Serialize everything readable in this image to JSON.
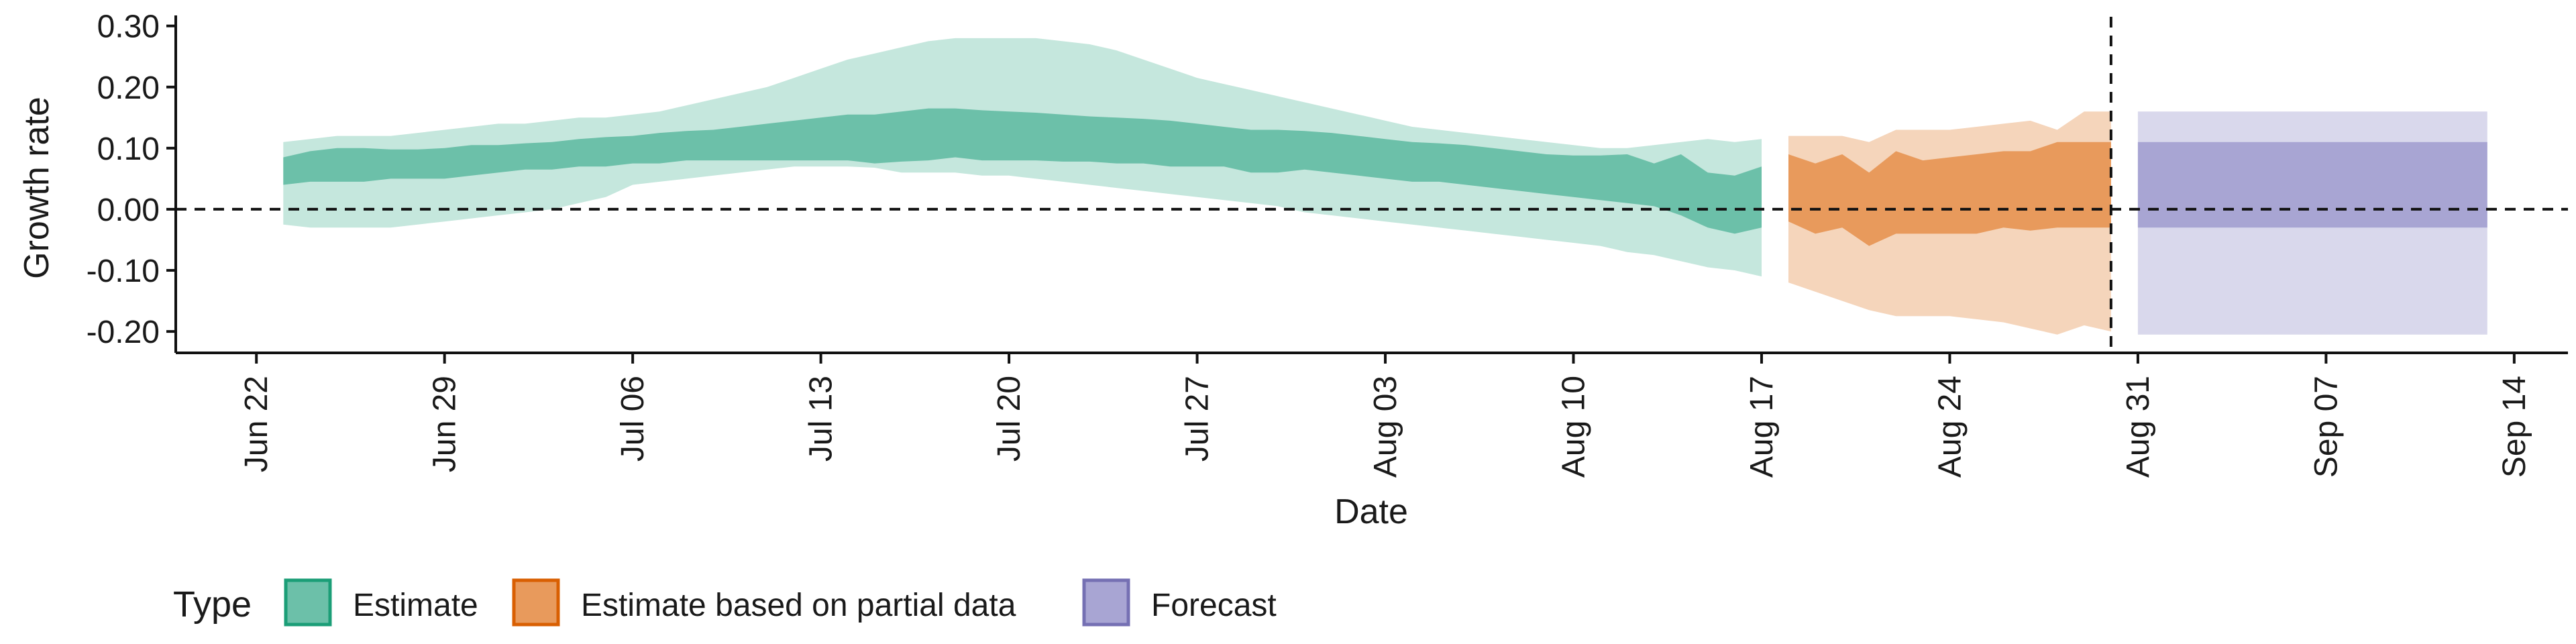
{
  "chart_data": {
    "type": "area",
    "title": "",
    "xlabel": "Date",
    "ylabel": "Growth rate",
    "ylim": [
      -0.235,
      0.315
    ],
    "yticks": [
      -0.2,
      -0.1,
      0.0,
      0.1,
      0.2,
      0.3
    ],
    "ytick_labels": [
      "-0.20",
      "-0.10",
      "0.00",
      "0.10",
      "0.20",
      "0.30"
    ],
    "xlim": [
      "2020-06-19",
      "2020-09-16"
    ],
    "xticks": [
      "2020-06-22",
      "2020-06-29",
      "2020-07-06",
      "2020-07-13",
      "2020-07-20",
      "2020-07-27",
      "2020-08-03",
      "2020-08-10",
      "2020-08-17",
      "2020-08-24",
      "2020-08-31",
      "2020-09-07",
      "2020-09-14"
    ],
    "xtick_labels": [
      "Jun 22",
      "Jun 29",
      "Jul 06",
      "Jul 13",
      "Jul 20",
      "Jul 27",
      "Aug 03",
      "Aug 10",
      "Aug 17",
      "Aug 24",
      "Aug 31",
      "Sep 07",
      "Sep 14"
    ],
    "reference_lines": {
      "horizontal_y": 0.0,
      "vertical_date": "2020-08-30"
    },
    "grid": false,
    "legend": {
      "title": "Type",
      "position": "bottom",
      "entries": [
        "Estimate",
        "Estimate based on partial data",
        "Forecast"
      ]
    },
    "series": [
      {
        "name": "Estimate",
        "fill": "#6cc0a9",
        "outer_fill": "#c5e7dd",
        "edge": "#1b9e77",
        "x": [
          "2020-06-23",
          "2020-06-24",
          "2020-06-25",
          "2020-06-26",
          "2020-06-27",
          "2020-06-28",
          "2020-06-29",
          "2020-06-30",
          "2020-07-01",
          "2020-07-02",
          "2020-07-03",
          "2020-07-04",
          "2020-07-05",
          "2020-07-06",
          "2020-07-07",
          "2020-07-08",
          "2020-07-09",
          "2020-07-10",
          "2020-07-11",
          "2020-07-12",
          "2020-07-13",
          "2020-07-14",
          "2020-07-15",
          "2020-07-16",
          "2020-07-17",
          "2020-07-18",
          "2020-07-19",
          "2020-07-20",
          "2020-07-21",
          "2020-07-22",
          "2020-07-23",
          "2020-07-24",
          "2020-07-25",
          "2020-07-26",
          "2020-07-27",
          "2020-07-28",
          "2020-07-29",
          "2020-07-30",
          "2020-07-31",
          "2020-08-01",
          "2020-08-02",
          "2020-08-03",
          "2020-08-04",
          "2020-08-05",
          "2020-08-06",
          "2020-08-07",
          "2020-08-08",
          "2020-08-09",
          "2020-08-10",
          "2020-08-11",
          "2020-08-12",
          "2020-08-13",
          "2020-08-14",
          "2020-08-15",
          "2020-08-16",
          "2020-08-17"
        ],
        "lower_90": [
          -0.025,
          -0.03,
          -0.03,
          -0.03,
          -0.03,
          -0.025,
          -0.02,
          -0.015,
          -0.01,
          -0.005,
          0.0,
          0.01,
          0.02,
          0.04,
          0.045,
          0.05,
          0.055,
          0.06,
          0.065,
          0.07,
          0.07,
          0.07,
          0.068,
          0.06,
          0.06,
          0.06,
          0.055,
          0.055,
          0.05,
          0.045,
          0.04,
          0.035,
          0.03,
          0.025,
          0.02,
          0.015,
          0.01,
          0.005,
          -0.005,
          -0.01,
          -0.015,
          -0.02,
          -0.025,
          -0.03,
          -0.035,
          -0.04,
          -0.045,
          -0.05,
          -0.055,
          -0.06,
          -0.07,
          -0.075,
          -0.085,
          -0.095,
          -0.1,
          -0.11
        ],
        "lower_50": [
          0.04,
          0.045,
          0.045,
          0.045,
          0.05,
          0.05,
          0.05,
          0.055,
          0.06,
          0.065,
          0.065,
          0.07,
          0.07,
          0.075,
          0.075,
          0.08,
          0.08,
          0.08,
          0.08,
          0.08,
          0.08,
          0.08,
          0.075,
          0.078,
          0.08,
          0.085,
          0.08,
          0.08,
          0.08,
          0.078,
          0.078,
          0.075,
          0.075,
          0.07,
          0.07,
          0.07,
          0.06,
          0.06,
          0.065,
          0.06,
          0.055,
          0.05,
          0.045,
          0.045,
          0.04,
          0.035,
          0.03,
          0.025,
          0.02,
          0.015,
          0.01,
          0.005,
          -0.01,
          -0.03,
          -0.04,
          -0.03
        ],
        "upper_50": [
          0.085,
          0.095,
          0.1,
          0.1,
          0.098,
          0.098,
          0.1,
          0.105,
          0.105,
          0.108,
          0.11,
          0.115,
          0.118,
          0.12,
          0.125,
          0.128,
          0.13,
          0.135,
          0.14,
          0.145,
          0.15,
          0.155,
          0.155,
          0.16,
          0.165,
          0.165,
          0.162,
          0.16,
          0.158,
          0.155,
          0.152,
          0.15,
          0.148,
          0.145,
          0.14,
          0.135,
          0.13,
          0.13,
          0.128,
          0.125,
          0.12,
          0.115,
          0.11,
          0.108,
          0.105,
          0.1,
          0.095,
          0.09,
          0.088,
          0.088,
          0.09,
          0.075,
          0.09,
          0.06,
          0.055,
          0.07
        ],
        "upper_90": [
          0.11,
          0.115,
          0.12,
          0.12,
          0.12,
          0.125,
          0.13,
          0.135,
          0.14,
          0.14,
          0.145,
          0.15,
          0.15,
          0.155,
          0.16,
          0.17,
          0.18,
          0.19,
          0.2,
          0.215,
          0.23,
          0.245,
          0.255,
          0.265,
          0.275,
          0.28,
          0.28,
          0.28,
          0.28,
          0.275,
          0.27,
          0.26,
          0.245,
          0.23,
          0.215,
          0.205,
          0.195,
          0.185,
          0.175,
          0.165,
          0.155,
          0.145,
          0.135,
          0.13,
          0.125,
          0.12,
          0.115,
          0.11,
          0.105,
          0.1,
          0.1,
          0.105,
          0.11,
          0.115,
          0.11,
          0.115
        ]
      },
      {
        "name": "Estimate based on partial data",
        "fill": "#e89a5c",
        "outer_fill": "#f5d5bb",
        "edge": "#d95f02",
        "x": [
          "2020-08-18",
          "2020-08-19",
          "2020-08-20",
          "2020-08-21",
          "2020-08-22",
          "2020-08-23",
          "2020-08-24",
          "2020-08-25",
          "2020-08-26",
          "2020-08-27",
          "2020-08-28",
          "2020-08-29",
          "2020-08-30"
        ],
        "lower_90": [
          -0.12,
          -0.135,
          -0.15,
          -0.165,
          -0.175,
          -0.175,
          -0.175,
          -0.18,
          -0.185,
          -0.195,
          -0.205,
          -0.19,
          -0.2
        ],
        "lower_50": [
          -0.02,
          -0.04,
          -0.03,
          -0.06,
          -0.04,
          -0.04,
          -0.04,
          -0.04,
          -0.03,
          -0.035,
          -0.03,
          -0.03,
          -0.03
        ],
        "upper_50": [
          0.09,
          0.075,
          0.09,
          0.06,
          0.095,
          0.08,
          0.085,
          0.09,
          0.095,
          0.095,
          0.11,
          0.11,
          0.11
        ],
        "upper_90": [
          0.12,
          0.12,
          0.12,
          0.11,
          0.13,
          0.13,
          0.13,
          0.135,
          0.14,
          0.145,
          0.13,
          0.16,
          0.16
        ]
      },
      {
        "name": "Forecast",
        "fill": "#a8a5d3",
        "outer_fill": "#d9d8ec",
        "edge": "#7570b3",
        "x": [
          "2020-08-31",
          "2020-09-13"
        ],
        "lower_90": [
          -0.205,
          -0.205
        ],
        "lower_50": [
          -0.03,
          -0.03
        ],
        "upper_50": [
          0.11,
          0.11
        ],
        "upper_90": [
          0.16,
          0.16
        ]
      }
    ]
  }
}
